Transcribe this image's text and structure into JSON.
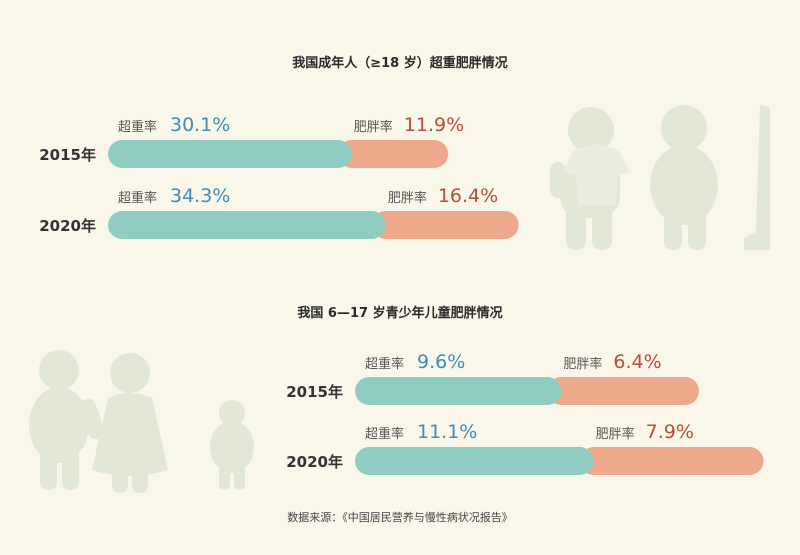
{
  "colors": {
    "overweight": "#8fcdc3",
    "obese": "#eea88c",
    "overweight_text": "#3d8db8",
    "obese_text": "#b84d3a",
    "silhouette": "#e3e7d6",
    "background": "#f9f7ea"
  },
  "source": "数据来源：《中国居民营养与慢性病状况报告》",
  "chart_data": [
    {
      "type": "bar",
      "stacked": true,
      "orientation": "horizontal",
      "title": "我国成年人（≥18 岁）超重肥胖情况",
      "categories": [
        "2015年",
        "2020年"
      ],
      "series": [
        {
          "name": "超重率",
          "values": [
            30.1,
            34.3
          ],
          "labels": [
            "30.1%",
            "34.3%"
          ]
        },
        {
          "name": "肥胖率",
          "values": [
            11.9,
            16.4
          ],
          "labels": [
            "11.9%",
            "16.4%"
          ]
        }
      ]
    },
    {
      "type": "bar",
      "stacked": true,
      "orientation": "horizontal",
      "title": "我国 6—17 岁青少年儿童肥胖情况",
      "categories": [
        "2015年",
        "2020年"
      ],
      "series": [
        {
          "name": "超重率",
          "values": [
            9.6,
            11.1
          ],
          "labels": [
            "9.6%",
            "11.1%"
          ]
        },
        {
          "name": "肥胖率",
          "values": [
            6.4,
            7.9
          ],
          "labels": [
            "6.4%",
            "7.9%"
          ]
        }
      ]
    }
  ]
}
